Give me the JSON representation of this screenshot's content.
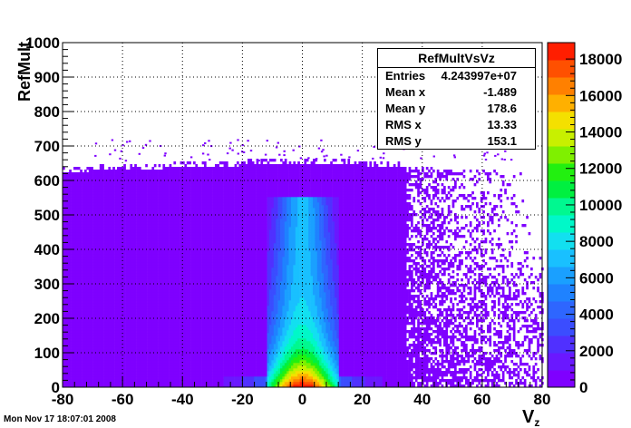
{
  "chart_data": {
    "type": "heatmap",
    "title": "",
    "xlabel": "V",
    "xlabel_sub": "z",
    "ylabel": "RefMult",
    "xlim": [
      -80,
      80
    ],
    "ylim": [
      0,
      1000
    ],
    "x_ticks": [
      "-80",
      "-60",
      "-40",
      "-20",
      "0",
      "20",
      "40",
      "60",
      "80"
    ],
    "y_ticks": [
      "0",
      "100",
      "200",
      "300",
      "400",
      "500",
      "600",
      "700",
      "800",
      "900",
      "1000"
    ],
    "grid": true,
    "colorbar": {
      "min": 0,
      "max": 18000,
      "ticks": [
        "0",
        "2000",
        "4000",
        "6000",
        "8000",
        "10000",
        "12000",
        "14000",
        "16000",
        "18000"
      ],
      "colors": [
        "#7f00ff",
        "#6a18ff",
        "#5030ff",
        "#3b4dff",
        "#2e66ff",
        "#1f82ff",
        "#1aa0ff",
        "#19c0ff",
        "#12e0f0",
        "#00f8c8",
        "#00f890",
        "#00f040",
        "#22f010",
        "#7ff000",
        "#c8f000",
        "#f4e000",
        "#ffb000",
        "#ff8000",
        "#ff5000",
        "#ff1e00"
      ]
    },
    "density_features": {
      "band_top_refmult": 650,
      "core_vz_half_width": 6,
      "core_peak_refmult": 550,
      "sparse_region_vz_start": 35
    }
  },
  "stats": {
    "title": "RefMultVsVz",
    "rows": [
      {
        "label": "Entries",
        "value": "4.243997e+07"
      },
      {
        "label": "Mean x",
        "value": "-1.489"
      },
      {
        "label": "Mean y",
        "value": "178.6"
      },
      {
        "label": "RMS x",
        "value": "13.33"
      },
      {
        "label": "RMS y",
        "value": "153.1"
      }
    ]
  },
  "timestamp": "Mon Nov 17 18:07:01 2008"
}
